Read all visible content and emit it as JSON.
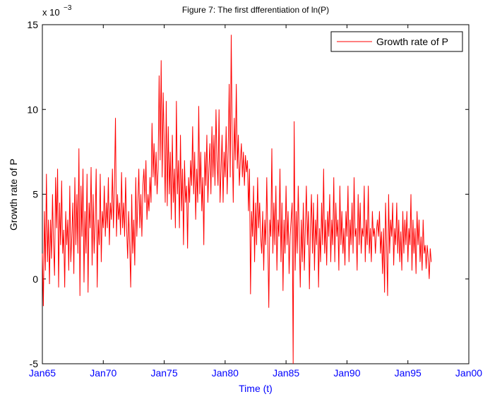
{
  "chart_data": {
    "type": "line",
    "title": "Figure 7: The first dfferentiation of ln(P)",
    "xlabel": "Time (t)",
    "ylabel": "Growth rate of P",
    "y_multiplier": "x 10",
    "y_multiplier_exponent": "−3",
    "legend": "upper right",
    "xlim": [
      "1965-01",
      "2000-01"
    ],
    "xticks": [
      {
        "value": "1965-01",
        "label": "Jan65"
      },
      {
        "value": "1970-01",
        "label": "Jan70"
      },
      {
        "value": "1975-01",
        "label": "Jan75"
      },
      {
        "value": "1980-01",
        "label": "Jan80"
      },
      {
        "value": "1985-01",
        "label": "Jan85"
      },
      {
        "value": "1990-01",
        "label": "Jan90"
      },
      {
        "value": "1995-01",
        "label": "Jan95"
      },
      {
        "value": "2000-01",
        "label": "Jan00"
      }
    ],
    "ylim": [
      -5,
      15
    ],
    "yticks": [
      -5,
      0,
      5,
      10,
      15
    ],
    "x": [
      "1965-01",
      "1965-02",
      "1965-03",
      "1965-04",
      "1965-05",
      "1965-06",
      "1965-07",
      "1965-08",
      "1965-09",
      "1965-10",
      "1965-11",
      "1965-12",
      "1966-01",
      "1966-02",
      "1966-03",
      "1966-04",
      "1966-05",
      "1966-06",
      "1966-07",
      "1966-08",
      "1966-09",
      "1966-10",
      "1966-11",
      "1966-12",
      "1967-01",
      "1967-02",
      "1967-03",
      "1967-04",
      "1967-05",
      "1967-06",
      "1967-07",
      "1967-08",
      "1967-09",
      "1967-10",
      "1967-11",
      "1967-12",
      "1968-01",
      "1968-02",
      "1968-03",
      "1968-04",
      "1968-05",
      "1968-06",
      "1968-07",
      "1968-08",
      "1968-09",
      "1968-10",
      "1968-11",
      "1968-12",
      "1969-01",
      "1969-02",
      "1969-03",
      "1969-04",
      "1969-05",
      "1969-06",
      "1969-07",
      "1969-08",
      "1969-09",
      "1969-10",
      "1969-11",
      "1969-12",
      "1970-01",
      "1970-02",
      "1970-03",
      "1970-04",
      "1970-05",
      "1970-06",
      "1970-07",
      "1970-08",
      "1970-09",
      "1970-10",
      "1970-11",
      "1970-12",
      "1971-01",
      "1971-02",
      "1971-03",
      "1971-04",
      "1971-05",
      "1971-06",
      "1971-07",
      "1971-08",
      "1971-09",
      "1971-10",
      "1971-11",
      "1971-12",
      "1972-01",
      "1972-02",
      "1972-03",
      "1972-04",
      "1972-05",
      "1972-06",
      "1972-07",
      "1972-08",
      "1972-09",
      "1972-10",
      "1972-11",
      "1972-12",
      "1973-01",
      "1973-02",
      "1973-03",
      "1973-04",
      "1973-05",
      "1973-06",
      "1973-07",
      "1973-08",
      "1973-09",
      "1973-10",
      "1973-11",
      "1973-12",
      "1974-01",
      "1974-02",
      "1974-03",
      "1974-04",
      "1974-05",
      "1974-06",
      "1974-07",
      "1974-08",
      "1974-09",
      "1974-10",
      "1974-11",
      "1974-12",
      "1975-01",
      "1975-02",
      "1975-03",
      "1975-04",
      "1975-05",
      "1975-06",
      "1975-07",
      "1975-08",
      "1975-09",
      "1975-10",
      "1975-11",
      "1975-12",
      "1976-01",
      "1976-02",
      "1976-03",
      "1976-04",
      "1976-05",
      "1976-06",
      "1976-07",
      "1976-08",
      "1976-09",
      "1976-10",
      "1976-11",
      "1976-12",
      "1977-01",
      "1977-02",
      "1977-03",
      "1977-04",
      "1977-05",
      "1977-06",
      "1977-07",
      "1977-08",
      "1977-09",
      "1977-10",
      "1977-11",
      "1977-12",
      "1978-01",
      "1978-02",
      "1978-03",
      "1978-04",
      "1978-05",
      "1978-06",
      "1978-07",
      "1978-08",
      "1978-09",
      "1978-10",
      "1978-11",
      "1978-12",
      "1979-01",
      "1979-02",
      "1979-03",
      "1979-04",
      "1979-05",
      "1979-06",
      "1979-07",
      "1979-08",
      "1979-09",
      "1979-10",
      "1979-11",
      "1979-12",
      "1980-01",
      "1980-02",
      "1980-03",
      "1980-04",
      "1980-05",
      "1980-06",
      "1980-07",
      "1980-08",
      "1980-09",
      "1980-10",
      "1980-11",
      "1980-12",
      "1981-01",
      "1981-02",
      "1981-03",
      "1981-04",
      "1981-05",
      "1981-06",
      "1981-07",
      "1981-08",
      "1981-09",
      "1981-10",
      "1981-11",
      "1981-12",
      "1982-01",
      "1982-02",
      "1982-03",
      "1982-04",
      "1982-05",
      "1982-06",
      "1982-07",
      "1982-08",
      "1982-09",
      "1982-10",
      "1982-11",
      "1982-12",
      "1983-01",
      "1983-02",
      "1983-03",
      "1983-04",
      "1983-05",
      "1983-06",
      "1983-07",
      "1983-08",
      "1983-09",
      "1983-10",
      "1983-11",
      "1983-12",
      "1984-01",
      "1984-02",
      "1984-03",
      "1984-04",
      "1984-05",
      "1984-06",
      "1984-07",
      "1984-08",
      "1984-09",
      "1984-10",
      "1984-11",
      "1984-12",
      "1985-01",
      "1985-02",
      "1985-03",
      "1985-04",
      "1985-05",
      "1985-06",
      "1985-07",
      "1985-08",
      "1985-09",
      "1985-10",
      "1985-11",
      "1985-12",
      "1986-01",
      "1986-02",
      "1986-03",
      "1986-04",
      "1986-05",
      "1986-06",
      "1986-07",
      "1986-08",
      "1986-09",
      "1986-10",
      "1986-11",
      "1986-12",
      "1987-01",
      "1987-02",
      "1987-03",
      "1987-04",
      "1987-05",
      "1987-06",
      "1987-07",
      "1987-08",
      "1987-09",
      "1987-10",
      "1987-11",
      "1987-12",
      "1988-01",
      "1988-02",
      "1988-03",
      "1988-04",
      "1988-05",
      "1988-06",
      "1988-07",
      "1988-08",
      "1988-09",
      "1988-10",
      "1988-11",
      "1988-12",
      "1989-01",
      "1989-02",
      "1989-03",
      "1989-04",
      "1989-05",
      "1989-06",
      "1989-07",
      "1989-08",
      "1989-09",
      "1989-10",
      "1989-11",
      "1989-12",
      "1990-01",
      "1990-02",
      "1990-03",
      "1990-04",
      "1990-05",
      "1990-06",
      "1990-07",
      "1990-08",
      "1990-09",
      "1990-10",
      "1990-11",
      "1990-12",
      "1991-01",
      "1991-02",
      "1991-03",
      "1991-04",
      "1991-05",
      "1991-06",
      "1991-07",
      "1991-08",
      "1991-09",
      "1991-10",
      "1991-11",
      "1991-12",
      "1992-01",
      "1992-02",
      "1992-03",
      "1992-04",
      "1992-05",
      "1992-06",
      "1992-07",
      "1992-08",
      "1992-09",
      "1992-10",
      "1992-11",
      "1992-12",
      "1993-01",
      "1993-02",
      "1993-03",
      "1993-04",
      "1993-05",
      "1993-06",
      "1993-07",
      "1993-08",
      "1993-09",
      "1993-10",
      "1993-11",
      "1993-12",
      "1994-01",
      "1994-02",
      "1994-03",
      "1994-04",
      "1994-05",
      "1994-06",
      "1994-07",
      "1994-08",
      "1994-09",
      "1994-10",
      "1994-11",
      "1994-12",
      "1995-01",
      "1995-02",
      "1995-03",
      "1995-04",
      "1995-05",
      "1995-06",
      "1995-07",
      "1995-08",
      "1995-09",
      "1995-10",
      "1995-11",
      "1995-12",
      "1996-01",
      "1996-02",
      "1996-03",
      "1996-04",
      "1996-05",
      "1996-06",
      "1996-07",
      "1996-08",
      "1996-09",
      "1996-10",
      "1996-11",
      "1996-12"
    ],
    "series": [
      {
        "name": "Growth rate of P",
        "color": "#ff0000",
        "values": [
          1.5,
          -1.6,
          4.0,
          0.5,
          6.2,
          1.0,
          3.5,
          -0.3,
          3.5,
          1.2,
          5.0,
          2.0,
          0.2,
          6.0,
          3.0,
          6.5,
          -0.5,
          4.5,
          2.0,
          5.8,
          1.5,
          2.9,
          -0.5,
          4.0,
          2.0,
          3.5,
          0.5,
          5.5,
          1.0,
          2.5,
          4.5,
          0.3,
          6.0,
          2.0,
          5.0,
          1.5,
          7.7,
          -1.0,
          5.5,
          2.5,
          6.5,
          -0.2,
          4.0,
          1.5,
          6.2,
          -0.8,
          4.5,
          3.0,
          6.6,
          0.8,
          5.0,
          1.5,
          3.5,
          6.5,
          -0.5,
          3.5,
          2.0,
          6.2,
          1.0,
          4.0,
          3.0,
          5.5,
          2.5,
          4.5,
          3.0,
          6.0,
          2.0,
          4.5,
          3.5,
          6.5,
          3.0,
          5.5,
          9.5,
          2.5,
          5.0,
          3.5,
          4.5,
          2.6,
          6.3,
          3.0,
          4.5,
          2.5,
          6.0,
          3.0,
          1.2,
          4.0,
          2.0,
          -0.5,
          5.0,
          1.5,
          3.5,
          0.8,
          6.0,
          2.5,
          4.5,
          6.5,
          3.0,
          5.0,
          2.5,
          5.5,
          6.5,
          4.5,
          7.0,
          3.5,
          5.0,
          4.0,
          6.0,
          4.5,
          9.2,
          6.0,
          8.0,
          5.5,
          7.5,
          5.0,
          6.5,
          12.0,
          7.0,
          12.9,
          6.0,
          11.0,
          8.0,
          4.5,
          10.5,
          4.3,
          9.0,
          5.0,
          7.5,
          3.5,
          8.5,
          4.5,
          6.5,
          3.0,
          10.5,
          5.0,
          7.0,
          3.0,
          8.5,
          4.0,
          6.5,
          2.0,
          7.0,
          4.5,
          5.5,
          1.8,
          6.0,
          4.5,
          7.0,
          5.5,
          9.0,
          5.0,
          7.5,
          3.5,
          6.5,
          4.5,
          10.2,
          5.0,
          7.5,
          4.0,
          6.0,
          2.0,
          7.5,
          5.5,
          8.5,
          4.5,
          6.5,
          8.0,
          5.0,
          9.0,
          6.0,
          8.5,
          5.5,
          10.0,
          7.0,
          5.5,
          10.0,
          4.5,
          6.5,
          8.5,
          4.5,
          7.5,
          6.0,
          9.0,
          5.0,
          7.5,
          11.5,
          6.0,
          14.4,
          8.0,
          4.5,
          9.5,
          7.0,
          11.5,
          6.5,
          8.5,
          5.5,
          7.0,
          8.0,
          6.0,
          7.5,
          5.5,
          7.3,
          6.3,
          7.0,
          4.0,
          6.5,
          -0.9,
          4.0,
          2.5,
          5.5,
          1.0,
          4.5,
          2.0,
          6.0,
          3.0,
          4.5,
          2.5,
          1.5,
          4.0,
          0.5,
          3.5,
          2.0,
          6.0,
          2.5,
          -1.7,
          3.5,
          2.5,
          7.7,
          1.5,
          4.5,
          2.0,
          5.5,
          0.5,
          3.5,
          2.5,
          6.5,
          1.0,
          4.5,
          -0.7,
          3.5,
          1.5,
          5.5,
          2.0,
          4.0,
          0.3,
          2.5,
          3.5,
          4.5,
          -5.0,
          9.3,
          0.5,
          4.0,
          1.5,
          5.5,
          2.5,
          -0.5,
          3.5,
          1.0,
          4.5,
          0.5,
          3.0,
          5.5,
          2.0,
          4.0,
          -0.6,
          3.0,
          5.0,
          1.5,
          4.5,
          0.5,
          3.5,
          2.0,
          5.0,
          -0.5,
          3.0,
          1.0,
          4.5,
          2.0,
          6.5,
          1.5,
          3.5,
          0.8,
          4.0,
          2.5,
          5.0,
          1.0,
          3.5,
          2.0,
          6.0,
          1.0,
          4.5,
          2.5,
          3.5,
          0.5,
          5.5,
          2.0,
          4.0,
          1.5,
          3.0,
          0.8,
          4.0,
          2.5,
          5.5,
          1.0,
          3.5,
          2.0,
          4.5,
          1.5,
          6.0,
          2.5,
          3.0,
          0.5,
          5.0,
          2.0,
          4.5,
          1.5,
          3.0,
          2.5,
          5.5,
          1.0,
          3.5,
          2.0,
          5.5,
          1.5,
          3.0,
          1.0,
          4.0,
          2.5,
          3.0,
          1.5,
          2.8,
          3.5,
          2.5,
          4.0,
          1.5,
          2.8,
          0.3,
          3.0,
          -0.8,
          4.5,
          2.0,
          -1.0,
          5.0,
          1.5,
          3.5,
          2.5,
          4.5,
          0.8,
          3.0,
          2.0,
          4.5,
          1.5,
          3.5,
          1.0,
          2.8,
          0.5,
          4.0,
          1.5,
          3.5,
          2.0,
          4.0,
          1.0,
          3.0,
          2.0,
          5.0,
          0.5,
          3.5,
          1.5,
          3.0,
          0.3,
          4.0,
          2.0,
          3.5,
          1.0,
          2.5,
          0.5,
          3.5,
          1.5,
          2.0,
          0.6,
          2.0,
          1.2,
          0.0,
          1.8,
          1.0
        ]
      }
    ]
  }
}
